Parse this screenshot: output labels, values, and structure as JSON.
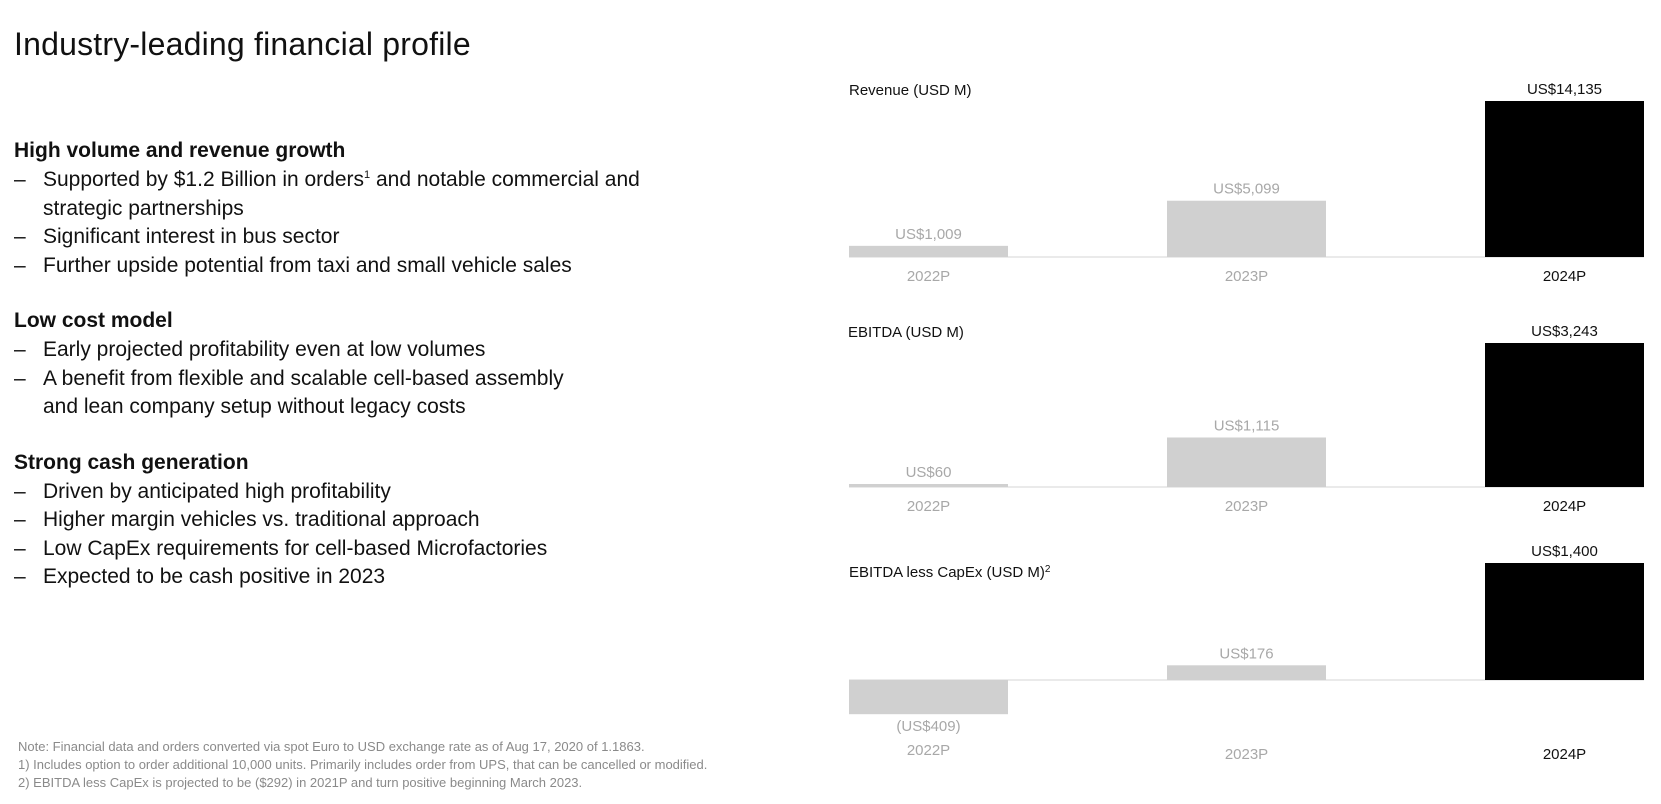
{
  "page": {
    "title": "Industry-leading financial profile"
  },
  "sections": [
    {
      "heading": "High volume and revenue growth",
      "bullets": [
        {
          "text": "Supported by $1.2 Billion in orders",
          "sup": "1",
          "after": " and notable commercial and strategic partnerships"
        },
        {
          "text": "Significant interest in bus sector"
        },
        {
          "text": "Further upside potential from taxi and small vehicle sales"
        }
      ]
    },
    {
      "heading": "Low cost model",
      "bullets": [
        {
          "text": "Early projected profitability even at low volumes"
        },
        {
          "text": "A benefit from flexible and scalable cell-based assembly and lean company setup without legacy costs"
        }
      ]
    },
    {
      "heading": "Strong cash generation",
      "bullets": [
        {
          "text": "Driven by anticipated high profitability"
        },
        {
          "text": "Higher margin vehicles vs. traditional approach"
        },
        {
          "text": "Low CapEx requirements for cell-based Microfactories"
        },
        {
          "text": "Expected to be cash positive in 2023"
        }
      ]
    }
  ],
  "dash_symbol": "–",
  "notes": [
    "Note: Financial data and orders converted via spot Euro to USD exchange rate as of Aug 17, 2020 of 1.1863.",
    "1) Includes option to order additional 10,000 units. Primarily includes order from UPS, that can be cancelled or modified.",
    "2) EBITDA less CapEx is projected to be ($292) in 2021P and turn positive beginning March 2023."
  ],
  "colors": {
    "projected_bar": "#d0d0d0",
    "highlight_bar": "#000000",
    "muted_text": "#a8a8a8",
    "text": "#111111",
    "baseline": "#e3e3e3"
  },
  "chart_data": [
    {
      "type": "bar",
      "title": "Revenue (USD M)",
      "title_sup": "",
      "categories": [
        "2022P",
        "2023P",
        "2024P"
      ],
      "values": [
        1009,
        5099,
        14135
      ],
      "data_labels": [
        "US$1,009",
        "US$5,099",
        "US$14,135"
      ],
      "highlight_index": 2,
      "ylim": [
        0,
        14135
      ]
    },
    {
      "type": "bar",
      "title": "EBITDA (USD M)",
      "title_sup": "",
      "categories": [
        "2022P",
        "2023P",
        "2024P"
      ],
      "values": [
        60,
        1115,
        3243
      ],
      "data_labels": [
        "US$60",
        "US$1,115",
        "US$3,243"
      ],
      "highlight_index": 2,
      "ylim": [
        0,
        3243
      ]
    },
    {
      "type": "bar",
      "title": "EBITDA less CapEx (USD M)",
      "title_sup": "2",
      "categories": [
        "2022P",
        "2023P",
        "2024P"
      ],
      "values": [
        -409,
        176,
        1400
      ],
      "data_labels": [
        "(US$409)",
        "US$176",
        "US$1,400"
      ],
      "highlight_index": 2,
      "ylim": [
        -409,
        1400
      ]
    }
  ]
}
